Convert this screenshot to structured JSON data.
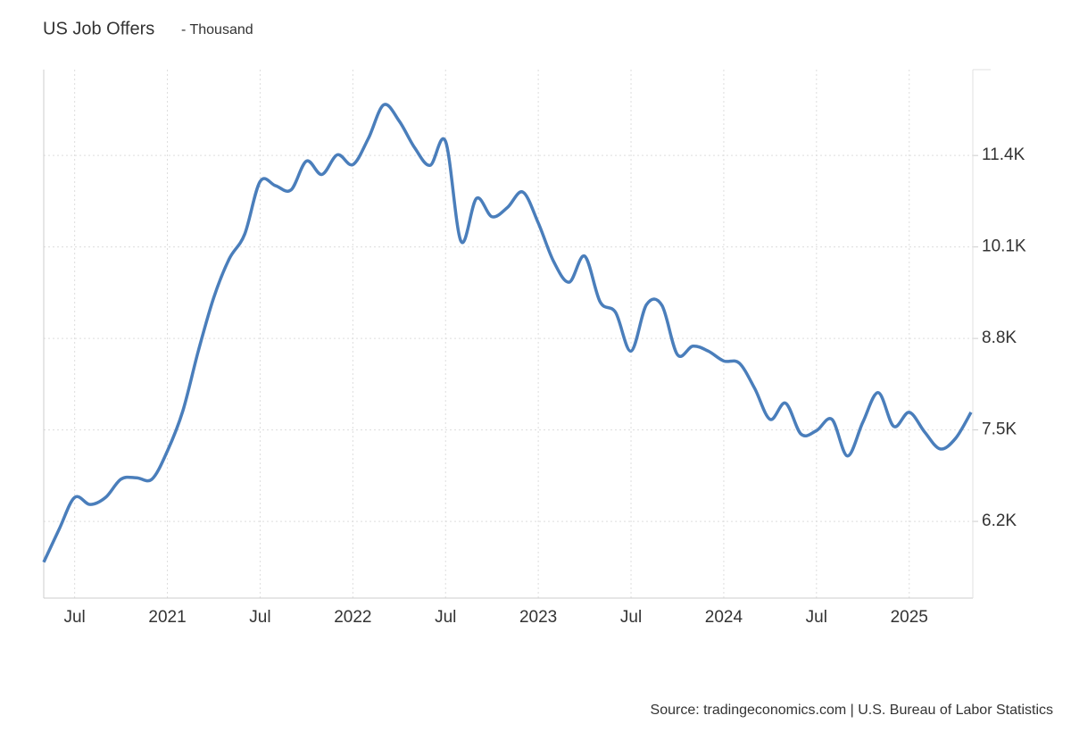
{
  "chart_data": {
    "type": "line",
    "title": "US Job Offers",
    "subtitle": "- Thousand",
    "source": "Source: tradingeconomics.com | U.S. Bureau of Labor Statistics",
    "x": [
      "2020-05",
      "2020-06",
      "2020-07",
      "2020-08",
      "2020-09",
      "2020-10",
      "2020-11",
      "2020-12",
      "2021-01",
      "2021-02",
      "2021-03",
      "2021-04",
      "2021-05",
      "2021-06",
      "2021-07",
      "2021-08",
      "2021-09",
      "2021-10",
      "2021-11",
      "2021-12",
      "2022-01",
      "2022-02",
      "2022-03",
      "2022-04",
      "2022-05",
      "2022-06",
      "2022-07",
      "2022-08",
      "2022-09",
      "2022-10",
      "2022-11",
      "2022-12",
      "2023-01",
      "2023-02",
      "2023-03",
      "2023-04",
      "2023-05",
      "2023-06",
      "2023-07",
      "2023-08",
      "2023-09",
      "2023-10",
      "2023-11",
      "2023-12",
      "2024-01",
      "2024-02",
      "2024-03",
      "2024-04",
      "2024-05",
      "2024-06",
      "2024-07",
      "2024-08",
      "2024-09",
      "2024-10",
      "2024-11",
      "2024-12",
      "2025-01",
      "2025-02",
      "2025-03",
      "2025-04",
      "2025-05"
    ],
    "series": [
      {
        "name": "US Job Offers",
        "color": "#4a7ebb",
        "values": [
          5620,
          6090,
          6540,
          6440,
          6540,
          6800,
          6820,
          6800,
          7200,
          7770,
          8620,
          9380,
          9930,
          10280,
          11030,
          10970,
          10910,
          11320,
          11130,
          11410,
          11270,
          11640,
          12120,
          11890,
          11510,
          11260,
          11600,
          10180,
          10790,
          10530,
          10660,
          10880,
          10440,
          9890,
          9600,
          9970,
          9320,
          9170,
          8620,
          9280,
          9270,
          8570,
          8690,
          8620,
          8480,
          8450,
          8090,
          7650,
          7880,
          7440,
          7490,
          7650,
          7130,
          7610,
          8030,
          7550,
          7750,
          7470,
          7230,
          7380,
          7750
        ]
      }
    ],
    "xlim": [
      "2020-05",
      "2025-05"
    ],
    "xticks": [
      {
        "value": "2020-07",
        "label": "Jul"
      },
      {
        "value": "2021-01",
        "label": "2021"
      },
      {
        "value": "2021-07",
        "label": "Jul"
      },
      {
        "value": "2022-01",
        "label": "2022"
      },
      {
        "value": "2022-07",
        "label": "Jul"
      },
      {
        "value": "2023-01",
        "label": "2023"
      },
      {
        "value": "2023-07",
        "label": "Jul"
      },
      {
        "value": "2024-01",
        "label": "2024"
      },
      {
        "value": "2024-07",
        "label": "Jul"
      },
      {
        "value": "2025-01",
        "label": "2025"
      }
    ],
    "ylim": [
      5110,
      12620
    ],
    "yticks": [
      {
        "value": 6200,
        "label": "6.2K"
      },
      {
        "value": 7500,
        "label": "7.5K"
      },
      {
        "value": 8800,
        "label": "8.8K"
      },
      {
        "value": 10100,
        "label": "10.1K"
      },
      {
        "value": 11400,
        "label": "11.4K"
      }
    ],
    "grid": true
  }
}
